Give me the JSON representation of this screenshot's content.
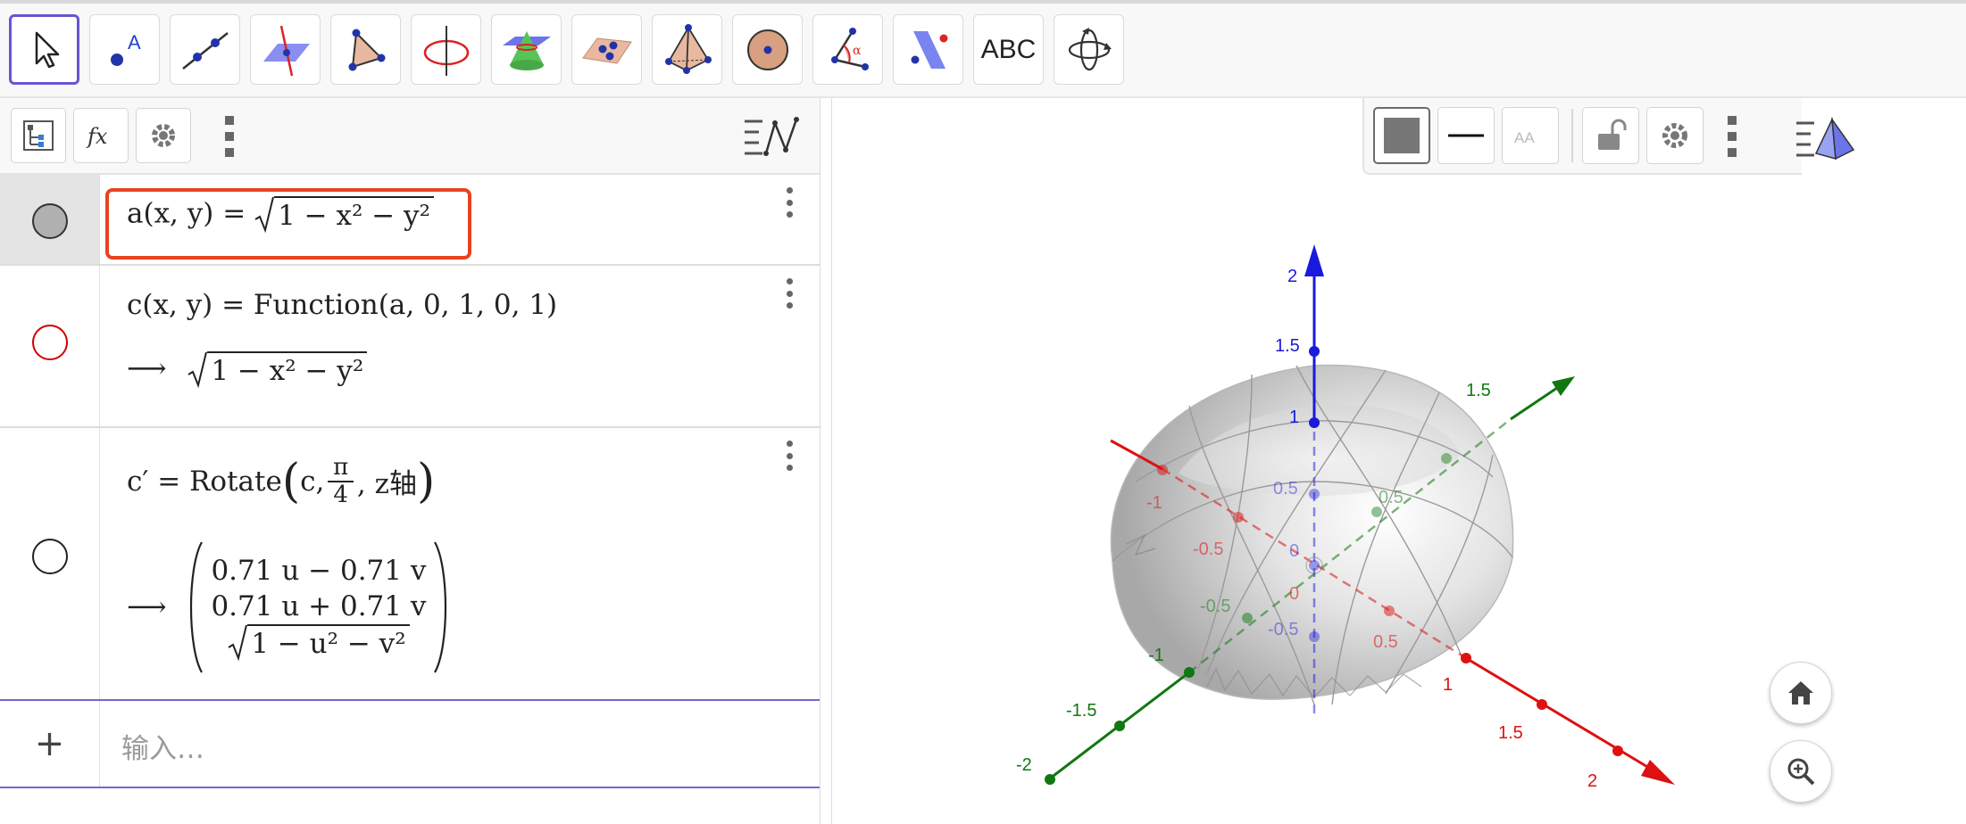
{
  "toolbar": {
    "tools": [
      {
        "name": "move-tool"
      },
      {
        "name": "point-tool"
      },
      {
        "name": "line-tool"
      },
      {
        "name": "perpendicular-line-tool"
      },
      {
        "name": "polygon-tool"
      },
      {
        "name": "circle-axis-tool"
      },
      {
        "name": "intersect-surfaces-tool"
      },
      {
        "name": "plane-through-points-tool"
      },
      {
        "name": "pyramid-tool"
      },
      {
        "name": "sphere-tool"
      },
      {
        "name": "angle-tool"
      },
      {
        "name": "reflect-about-plane-tool"
      },
      {
        "name": "text-tool",
        "label": "ABC"
      },
      {
        "name": "rotate-view-tool"
      }
    ]
  },
  "algebra": {
    "rows": [
      {
        "id": "a",
        "lhs": "a(x, y)  =",
        "radicand": "1 − x² − y²",
        "color": "#222222",
        "filled": true,
        "selected": true
      },
      {
        "id": "c",
        "definition": "c(x, y) = Function(a, 0, 1, 0, 1)",
        "arrow": "⟶",
        "radicand": "1 − x² − y²",
        "color": "#cc0000",
        "filled": false
      },
      {
        "id": "c_prime",
        "lhs": "c′ = Rotate",
        "args_prefix": "c,",
        "frac_num": "π",
        "frac_den": "4",
        "args_suffix": ", z轴",
        "arrow": "⟶",
        "matrix": [
          "0.71 u − 0.71 v",
          "0.71 u + 0.71 v"
        ],
        "matrix_radicand": "1 − u² − v²",
        "color": "#222222",
        "filled": false
      }
    ],
    "input_placeholder": "输入…"
  },
  "view3d": {
    "axes": {
      "z_labels": [
        "2",
        "1.5",
        "1",
        "0.5",
        "0",
        "-0.5"
      ],
      "y_labels": [
        "1.5",
        "0.5",
        "-0.5",
        "-1",
        "-1.5",
        "-2"
      ],
      "x_labels": [
        "-1",
        "-0.5",
        "0",
        "0.5",
        "1",
        "1.5",
        "2"
      ]
    },
    "colors": {
      "x_axis": "#dd1111",
      "y_axis": "#117711",
      "z_axis": "#1a1add",
      "accent": "#6557d2",
      "highlight": "#e8431e"
    }
  }
}
